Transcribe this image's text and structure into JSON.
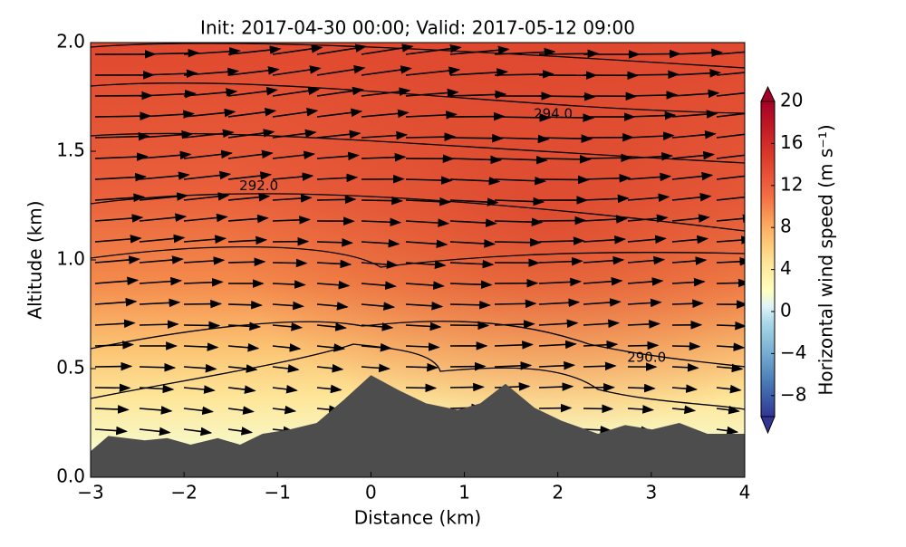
{
  "chart_data": {
    "type": "contour",
    "title": "Init: 2017-04-30 00:00; Valid: 2017-05-12 09:00",
    "x_label": "Distance (km)",
    "y_label": "Altitude (km)",
    "xlim": [
      -3,
      4
    ],
    "ylim": [
      0.0,
      2.0
    ],
    "xticks": [
      {
        "value": -3,
        "label": "−3"
      },
      {
        "value": -2,
        "label": "−2"
      },
      {
        "value": -1,
        "label": "−1"
      },
      0,
      1,
      2,
      3,
      4
    ],
    "yticks": [
      {
        "value": 0,
        "label": "0.0"
      },
      0.5,
      {
        "value": 1,
        "label": "1.0"
      },
      1.5,
      {
        "value": 2,
        "label": "2.0"
      }
    ],
    "terrain": {
      "x": [
        -3,
        -2.81,
        -2.42,
        -2.18,
        -1.93,
        -1.64,
        -1.4,
        -1.16,
        -0.87,
        -0.58,
        -0.28,
        0,
        0.3,
        0.59,
        0.93,
        1.17,
        1.44,
        1.75,
        2.04,
        2.43,
        2.72,
        3.01,
        3.3,
        3.6,
        4
      ],
      "values": [
        0.12,
        0.19,
        0.17,
        0.18,
        0.15,
        0.18,
        0.15,
        0.2,
        0.22,
        0.25,
        0.36,
        0.47,
        0.4,
        0.34,
        0.31,
        0.34,
        0.43,
        0.32,
        0.26,
        0.2,
        0.24,
        0.22,
        0.25,
        0.2,
        0.2
      ],
      "color": "#4d4d4d"
    },
    "annotations": [
      {
        "text": "292.0",
        "x": -1.2,
        "y": 1.34
      },
      {
        "text": "294.0",
        "x": 1.95,
        "y": 1.67
      },
      {
        "text": "290.0",
        "x": 2.95,
        "y": 0.55
      }
    ],
    "colorbar": {
      "label": "Horizontal wind speed (m s⁻¹)",
      "lim": [
        -10,
        20
      ],
      "ticks": [
        {
          "value": -8,
          "label": "−8"
        },
        {
          "value": -4,
          "label": "−4"
        },
        0,
        4,
        8,
        12,
        16,
        20
      ]
    }
  }
}
